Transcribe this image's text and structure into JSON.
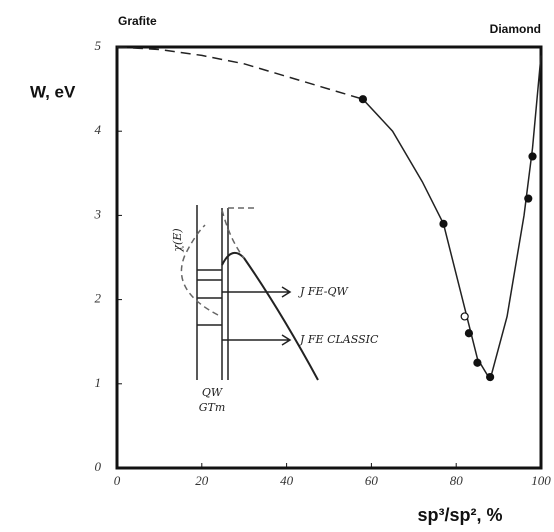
{
  "chart_data": {
    "type": "line",
    "top_left_label": "Grafite",
    "top_right_label": "Diamond",
    "y_label": "W, eV",
    "x_label": "sp³/sp², %",
    "xlim": [
      0,
      100
    ],
    "xticks": [
      0,
      20,
      40,
      60,
      80,
      100
    ],
    "ylim": [
      0,
      5
    ],
    "yticks": [
      0,
      1,
      2,
      3,
      4,
      5
    ],
    "lines": [
      {
        "style": "dashed",
        "x": [
          0,
          10,
          20,
          30,
          40,
          50,
          58
        ],
        "y": [
          5,
          4.97,
          4.9,
          4.8,
          4.65,
          4.5,
          4.38
        ]
      },
      {
        "style": "solid",
        "x": [
          58,
          65,
          72,
          77,
          80,
          83,
          85,
          88,
          92,
          96,
          98,
          100
        ],
        "y": [
          4.38,
          4.0,
          3.4,
          2.9,
          2.3,
          1.7,
          1.3,
          1.05,
          1.8,
          3.0,
          3.8,
          4.9
        ]
      }
    ],
    "points": {
      "x": [
        58,
        77,
        82,
        83,
        85,
        88,
        97,
        98
      ],
      "y": [
        4.38,
        2.9,
        1.8,
        1.6,
        1.25,
        1.08,
        3.2,
        3.7
      ],
      "open": [
        false,
        false,
        true,
        false,
        false,
        false,
        false,
        false
      ]
    },
    "annotations": [
      "χ(E)",
      "J FE-QW",
      "J FE CLASSIC",
      "QW",
      "GTm"
    ]
  }
}
